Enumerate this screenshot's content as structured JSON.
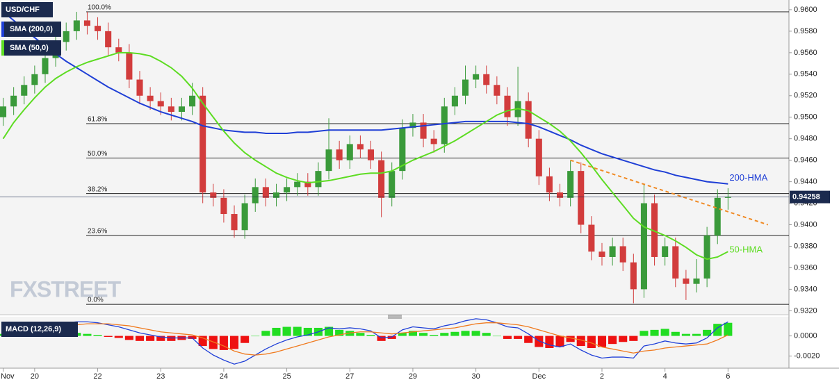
{
  "chart_data": [
    {
      "type": "candlestick",
      "title": "USD/CHF",
      "categories": [
        "Nov",
        null,
        null,
        "20",
        null,
        null,
        null,
        null,
        null,
        "22",
        null,
        null,
        null,
        null,
        null,
        "23",
        null,
        null,
        null,
        null,
        null,
        "24",
        null,
        null,
        null,
        null,
        null,
        "25",
        null,
        null,
        null,
        null,
        null,
        "27",
        null,
        null,
        null,
        null,
        null,
        "29",
        null,
        null,
        null,
        null,
        null,
        "30",
        null,
        null,
        null,
        null,
        null,
        "Dec",
        null,
        null,
        null,
        null,
        null,
        "2",
        null,
        null,
        null,
        null,
        null,
        "4",
        null,
        null,
        null,
        null,
        null,
        "6"
      ],
      "open": [
        0.95,
        0.951,
        0.952,
        0.953,
        0.954,
        0.9555,
        0.957,
        0.958,
        0.959,
        0.9585,
        0.958,
        0.9565,
        0.956,
        0.9535,
        0.952,
        0.9515,
        0.951,
        0.9505,
        0.951,
        0.952,
        0.943,
        0.9425,
        0.941,
        0.9395,
        0.942,
        0.9435,
        0.9425,
        0.943,
        0.9435,
        0.944,
        0.9435,
        0.945,
        0.947,
        0.946,
        0.9475,
        0.947,
        0.946,
        0.9425,
        0.945,
        0.949,
        0.9495,
        0.948,
        0.9475,
        0.951,
        0.952,
        0.9535,
        0.954,
        0.953,
        0.952,
        0.95,
        0.9515,
        0.948,
        0.9445,
        0.943,
        0.9425,
        0.945,
        0.94,
        0.9375,
        0.937,
        0.938,
        0.9365,
        0.934,
        0.942,
        0.937,
        0.938,
        0.935,
        0.9345,
        0.935,
        0.939,
        0.9425
      ],
      "high": [
        0.9518,
        0.9528,
        0.9538,
        0.9548,
        0.9563,
        0.9578,
        0.9588,
        0.9598,
        0.9598,
        0.9593,
        0.9588,
        0.9573,
        0.9568,
        0.9543,
        0.9528,
        0.9523,
        0.9518,
        0.9518,
        0.9532,
        0.9528,
        0.9438,
        0.9433,
        0.9418,
        0.9428,
        0.9443,
        0.9443,
        0.9438,
        0.9443,
        0.9448,
        0.9448,
        0.9458,
        0.9499,
        0.9478,
        0.9483,
        0.9483,
        0.9478,
        0.9468,
        0.9458,
        0.9498,
        0.9503,
        0.9503,
        0.9488,
        0.9518,
        0.9528,
        0.9548,
        0.9548,
        0.9548,
        0.9538,
        0.9528,
        0.9547,
        0.9523,
        0.9488,
        0.9453,
        0.9438,
        0.946,
        0.9458,
        0.9408,
        0.9383,
        0.9388,
        0.9388,
        0.9373,
        0.9438,
        0.9428,
        0.9388,
        0.9388,
        0.9358,
        0.9368,
        0.9398,
        0.9433,
        0.9434
      ],
      "low": [
        0.9492,
        0.9502,
        0.9512,
        0.9522,
        0.9532,
        0.9547,
        0.9562,
        0.9572,
        0.9577,
        0.9572,
        0.9557,
        0.9552,
        0.9527,
        0.9512,
        0.9507,
        0.9502,
        0.9497,
        0.9497,
        0.9502,
        0.942,
        0.9417,
        0.9402,
        0.9388,
        0.9387,
        0.9412,
        0.9417,
        0.9417,
        0.9422,
        0.9427,
        0.9427,
        0.9427,
        0.9442,
        0.9452,
        0.9452,
        0.9462,
        0.9452,
        0.9407,
        0.9417,
        0.9442,
        0.9482,
        0.9472,
        0.9467,
        0.9467,
        0.9502,
        0.9512,
        0.9527,
        0.9522,
        0.9512,
        0.9492,
        0.9492,
        0.9472,
        0.9437,
        0.9422,
        0.9417,
        0.9417,
        0.9392,
        0.9367,
        0.9362,
        0.9362,
        0.9357,
        0.9327,
        0.9332,
        0.9362,
        0.9362,
        0.9342,
        0.933,
        0.9337,
        0.9342,
        0.9382,
        0.9414
      ],
      "close": [
        0.951,
        0.952,
        0.953,
        0.954,
        0.9555,
        0.957,
        0.958,
        0.959,
        0.9585,
        0.958,
        0.9565,
        0.956,
        0.9535,
        0.952,
        0.9515,
        0.951,
        0.9505,
        0.951,
        0.952,
        0.943,
        0.9425,
        0.941,
        0.9395,
        0.942,
        0.9435,
        0.9425,
        0.943,
        0.9435,
        0.944,
        0.9435,
        0.945,
        0.947,
        0.946,
        0.9475,
        0.947,
        0.946,
        0.9425,
        0.945,
        0.949,
        0.9495,
        0.948,
        0.9475,
        0.951,
        0.952,
        0.9535,
        0.954,
        0.953,
        0.952,
        0.95,
        0.9515,
        0.948,
        0.9445,
        0.943,
        0.9425,
        0.945,
        0.94,
        0.9375,
        0.937,
        0.938,
        0.9365,
        0.934,
        0.942,
        0.937,
        0.938,
        0.935,
        0.9345,
        0.935,
        0.939,
        0.9425,
        0.9426
      ],
      "up_color": "#3a9a3a",
      "down_color": "#d23c3c",
      "series": [
        {
          "name": "SMA (200,0)",
          "label": "200-HMA",
          "color": "#1f3fd6",
          "values": [
            0.9598,
            0.959,
            0.9582,
            0.9574,
            0.9566,
            0.9559,
            0.9552,
            0.9546,
            0.954,
            0.9534,
            0.9528,
            0.9523,
            0.9518,
            0.9513,
            0.9509,
            0.9505,
            0.9502,
            0.9499,
            0.9496,
            0.9492,
            0.949,
            0.9488,
            0.9487,
            0.9486,
            0.9486,
            0.9485,
            0.9485,
            0.9485,
            0.9486,
            0.9486,
            0.9487,
            0.9488,
            0.9488,
            0.9488,
            0.9488,
            0.9488,
            0.9488,
            0.9489,
            0.949,
            0.9491,
            0.9492,
            0.9493,
            0.9494,
            0.9495,
            0.9496,
            0.9496,
            0.9496,
            0.9496,
            0.9496,
            0.9495,
            0.9494,
            0.9491,
            0.9487,
            0.9483,
            0.9479,
            0.9474,
            0.947,
            0.9466,
            0.9463,
            0.946,
            0.9457,
            0.9454,
            0.9451,
            0.9449,
            0.9446,
            0.9444,
            0.9442,
            0.944,
            0.9439,
            0.9438
          ]
        },
        {
          "name": "SMA (50,0)",
          "label": "50-HMA",
          "color": "#5ddc22",
          "values": [
            0.948,
            0.9495,
            0.9507,
            0.9518,
            0.9528,
            0.9536,
            0.9542,
            0.9547,
            0.9551,
            0.9554,
            0.9557,
            0.956,
            0.956,
            0.9559,
            0.9557,
            0.9552,
            0.9546,
            0.9538,
            0.9527,
            0.9513,
            0.95,
            0.9487,
            0.9476,
            0.9467,
            0.946,
            0.9454,
            0.9448,
            0.9444,
            0.9441,
            0.9439,
            0.944,
            0.9441,
            0.9443,
            0.9445,
            0.9447,
            0.9448,
            0.9448,
            0.945,
            0.9455,
            0.946,
            0.9464,
            0.9468,
            0.9473,
            0.9478,
            0.9484,
            0.949,
            0.9496,
            0.9502,
            0.9506,
            0.9508,
            0.9506,
            0.95,
            0.9494,
            0.9487,
            0.9478,
            0.9467,
            0.9455,
            0.9442,
            0.943,
            0.9418,
            0.9406,
            0.9398,
            0.9394,
            0.939,
            0.9385,
            0.9379,
            0.9372,
            0.9368,
            0.937,
            0.9375
          ]
        }
      ],
      "fib_levels": [
        {
          "price": 0.9598,
          "label": "100.0%"
        },
        {
          "price": 0.9494,
          "label": "61.8%"
        },
        {
          "price": 0.9462,
          "label": "50.0%"
        },
        {
          "price": 0.9429,
          "label": "38.2%"
        },
        {
          "price": 0.939,
          "label": "23.6%"
        },
        {
          "price": 0.9326,
          "label": "0.0%"
        }
      ],
      "trendline": {
        "x": [
          54,
          72.8
        ],
        "y": [
          0.946,
          0.94
        ],
        "color": "#f08a24"
      },
      "last_price": {
        "value": 0.94258,
        "label": "0.94258"
      },
      "watermark": "FXSTREET",
      "xlim": [
        -0.3,
        74.8
      ],
      "ylim": [
        0.9317,
        0.9609
      ],
      "yticks": [
        {
          "value": 0.932,
          "label": "0.9320"
        },
        {
          "value": 0.934,
          "label": "0.9340"
        },
        {
          "value": 0.936,
          "label": "0.9360"
        },
        {
          "value": 0.938,
          "label": "0.9380"
        },
        {
          "value": 0.94,
          "label": "0.9400"
        },
        {
          "value": 0.942,
          "label": "0.9420"
        },
        {
          "value": 0.944,
          "label": "0.9440"
        },
        {
          "value": 0.946,
          "label": "0.9460"
        },
        {
          "value": 0.948,
          "label": "0.9480"
        },
        {
          "value": 0.95,
          "label": "0.9500"
        },
        {
          "value": 0.952,
          "label": "0.9520"
        },
        {
          "value": 0.954,
          "label": "0.9540"
        },
        {
          "value": 0.956,
          "label": "0.9560"
        },
        {
          "value": 0.958,
          "label": "0.9580"
        },
        {
          "value": 0.96,
          "label": "0.9600"
        }
      ]
    },
    {
      "type": "macd",
      "title": "MACD (12,26,9)",
      "histogram": [
        0.0002,
        0.0003,
        0.0003,
        0.0004,
        0.0003,
        0.0003,
        0.0003,
        0.0003,
        0.0002,
        0.0001,
        -0.0001,
        -0.0002,
        -0.0004,
        -0.0005,
        -0.0005,
        -0.0005,
        -0.0005,
        -0.0004,
        -0.0003,
        -0.001,
        -0.0013,
        -0.0014,
        -0.0013,
        -0.0007,
        0,
        0.0005,
        0.0008,
        0.0009,
        0.0009,
        0.0008,
        0.0008,
        0.0009,
        0.0006,
        0.0005,
        0.0003,
        0.0001,
        -0.0005,
        -0.0003,
        0.0003,
        0.0005,
        0.0003,
        0.0001,
        0.0003,
        0.0004,
        0.0005,
        0.0005,
        0.0003,
        0,
        -0.0003,
        -0.0003,
        -0.0007,
        -0.0011,
        -0.0012,
        -0.0011,
        -0.0006,
        -0.001,
        -0.0012,
        -0.0011,
        -0.0008,
        -0.0006,
        -0.0005,
        0.0005,
        0.0006,
        0.0007,
        0.0004,
        0.0002,
        0.0002,
        0.0006,
        0.0012,
        0.0013
      ],
      "up_color": "#22dd22",
      "down_color": "#ee1111",
      "series": [
        {
          "color": "#2040d8",
          "values": [
            0.0004,
            0.0006,
            0.0008,
            0.001,
            0.0011,
            0.0012,
            0.0013,
            0.0014,
            0.0014,
            0.0013,
            0.0011,
            0.0009,
            0.0006,
            0.0003,
            0.0001,
            -0.0001,
            -0.0002,
            -0.0002,
            -0.0002,
            -0.0012,
            -0.0019,
            -0.0024,
            -0.0028,
            -0.0025,
            -0.0019,
            -0.0013,
            -0.0008,
            -0.0004,
            -0.0001,
            0.0001,
            0.0004,
            0.0008,
            0.0007,
            0.0008,
            0.0007,
            0.0005,
            -0.0002,
            -0.0001,
            0.0006,
            0.0009,
            0.0008,
            0.0007,
            0.001,
            0.0012,
            0.0015,
            0.0017,
            0.0016,
            0.0013,
            0.0009,
            0.0008,
            0.0002,
            -0.0005,
            -0.0009,
            -0.0011,
            -0.0008,
            -0.0014,
            -0.0019,
            -0.0022,
            -0.0021,
            -0.0021,
            -0.0022,
            -0.001,
            -0.0008,
            -0.0005,
            -0.0007,
            -0.0008,
            -0.0007,
            -0.0002,
            0.0008,
            0.0014
          ]
        },
        {
          "color": "#f07a1e",
          "values": [
            0.0002,
            0.0003,
            0.0005,
            0.0006,
            0.0008,
            0.0009,
            0.001,
            0.0011,
            0.0012,
            0.0012,
            0.0012,
            0.0011,
            0.001,
            0.0008,
            0.0006,
            0.0004,
            0.0003,
            0.0002,
            0.0001,
            -0.0002,
            -0.0006,
            -0.001,
            -0.0015,
            -0.0018,
            -0.0019,
            -0.0018,
            -0.0016,
            -0.0013,
            -0.001,
            -0.0007,
            -0.0004,
            -0.0001,
            0.0001,
            0.0003,
            0.0004,
            0.0004,
            0.0003,
            0.0002,
            0.0003,
            0.0004,
            0.0005,
            0.0006,
            0.0007,
            0.0008,
            0.001,
            0.0012,
            0.0013,
            0.0013,
            0.0012,
            0.0011,
            0.0009,
            0.0006,
            0.0003,
            0.0,
            -0.0002,
            -0.0004,
            -0.0007,
            -0.0011,
            -0.0013,
            -0.0015,
            -0.0017,
            -0.0015,
            -0.0014,
            -0.0012,
            -0.0011,
            -0.001,
            -0.0009,
            -0.0008,
            -0.0004,
            0.0001
          ]
        }
      ],
      "xlim": [
        -0.3,
        74.8
      ],
      "ylim": [
        -0.0032,
        0.0019
      ],
      "yticks": [
        {
          "value": 0,
          "label": "0.0000"
        },
        {
          "value": -0.002,
          "label": "-0.0020"
        }
      ]
    }
  ]
}
